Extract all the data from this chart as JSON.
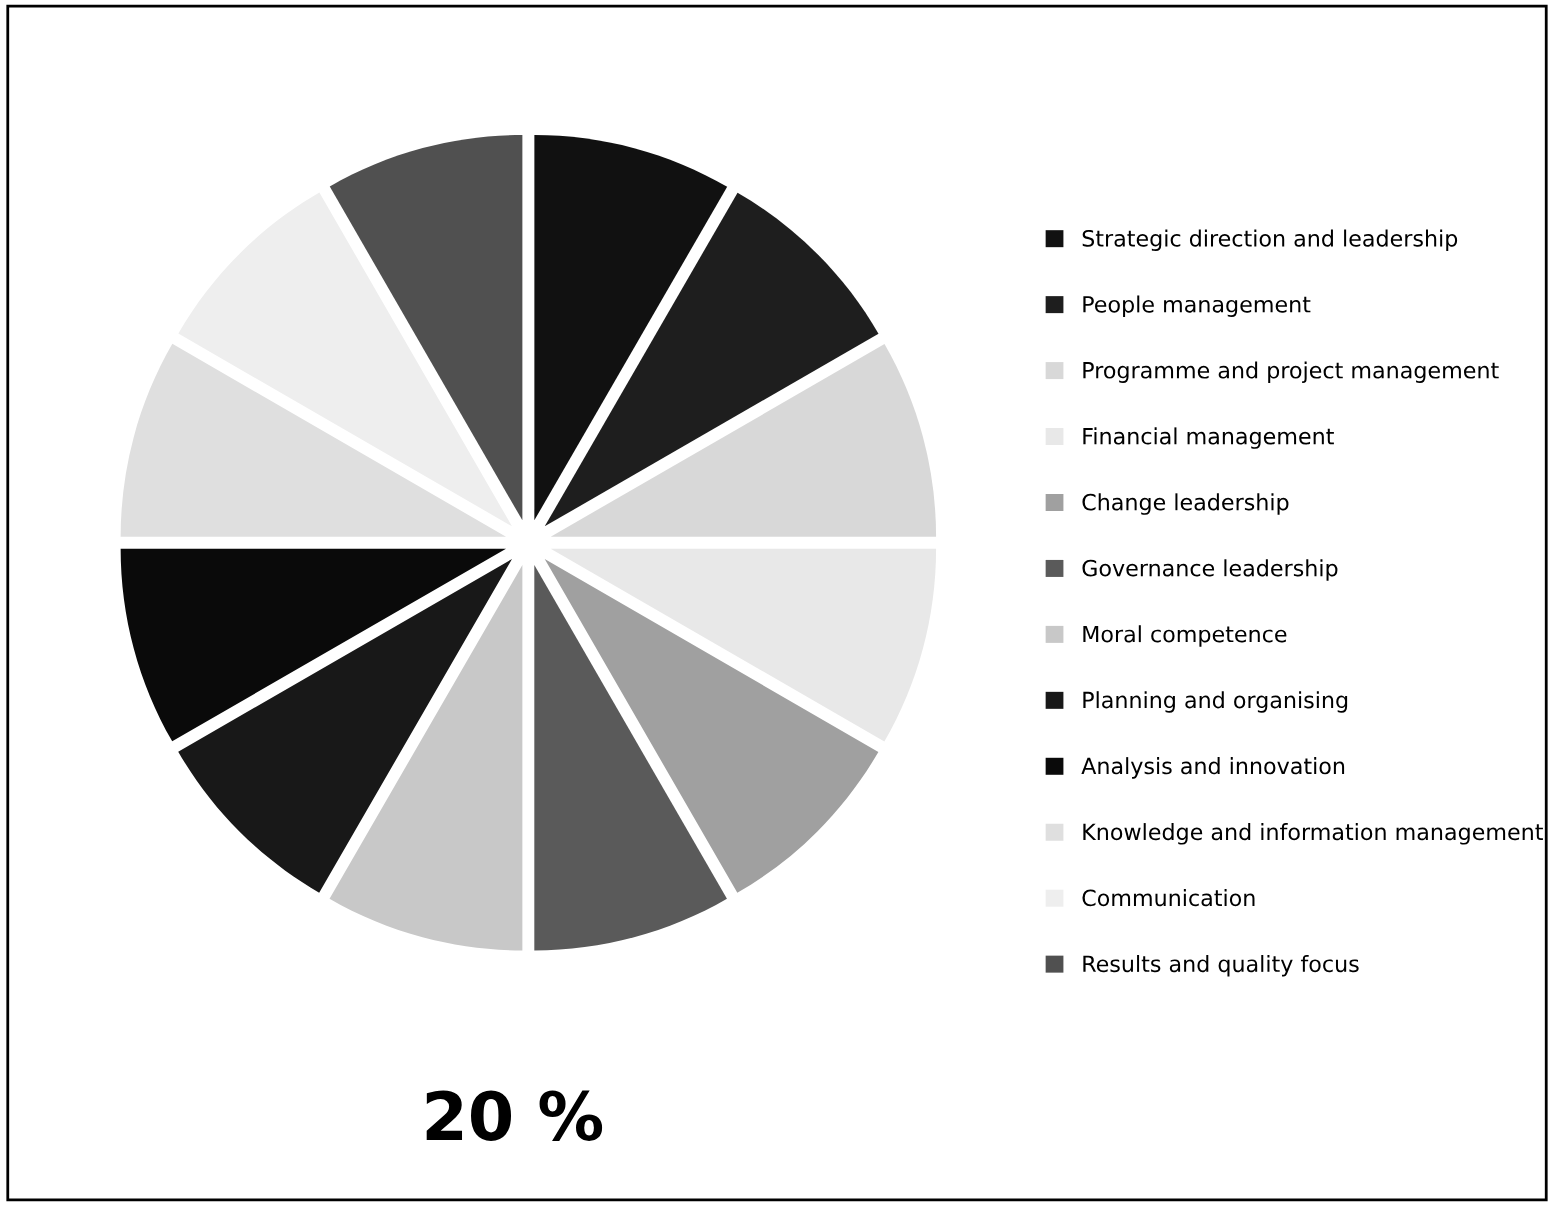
{
  "chart_data": {
    "type": "pie",
    "categories": [
      "Strategic direction and leadership",
      "People management",
      "Programme and project management",
      "Financial management",
      "Change leadership",
      "Governance leadership",
      "Moral competence",
      "Planning and organising",
      "Analysis and innovation",
      "Knowledge and information management",
      "Communication",
      "Results and quality focus"
    ],
    "values": [
      8.34,
      8.33,
      8.33,
      8.34,
      8.33,
      8.33,
      8.34,
      8.33,
      8.33,
      8.34,
      8.33,
      8.33
    ],
    "colors": [
      "#111111",
      "#1e1e1e",
      "#d8d8d8",
      "#e8e8e8",
      "#a0a0a0",
      "#5a5a5a",
      "#c8c8c8",
      "#181818",
      "#0a0a0a",
      "#dfdfdf",
      "#eeeeee",
      "#505050"
    ],
    "annotations": [
      "20 %"
    ],
    "legend": "right"
  }
}
